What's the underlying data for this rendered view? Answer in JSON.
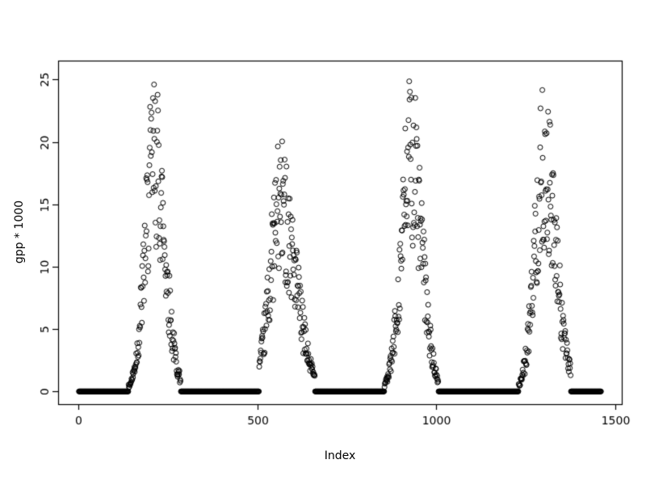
{
  "figure": {
    "background": "#ffffff",
    "foreground": "#000000"
  },
  "chart_data": {
    "type": "scatter",
    "title": "",
    "xlabel": "Index",
    "ylabel": "gpp * 1000",
    "xlim": [
      -57,
      1518
    ],
    "ylim": [
      -1.02,
      26.52
    ],
    "xticks": [
      0,
      500,
      1000,
      1500
    ],
    "yticks": [
      0,
      5,
      10,
      15,
      20,
      25
    ],
    "grid": false,
    "legend": false,
    "marker": "open-circle",
    "point_color": "#000000",
    "n_points": 1460,
    "baseline": {
      "value": 0,
      "outside_peak_windows": true
    },
    "seed": 42,
    "noise": {
      "min_factor": 0.45,
      "max_factor": 1.0
    },
    "peaks": [
      {
        "window": [
          140,
          285
        ],
        "center": 212,
        "amplitude": 25.5,
        "sigma_left": 26,
        "sigma_right": 30
      },
      {
        "window": [
          505,
          660
        ],
        "center": 565,
        "amplitude": 20.4,
        "sigma_left": 30,
        "sigma_right": 42
      },
      {
        "window": [
          855,
          1005
        ],
        "center": 930,
        "amplitude": 25.6,
        "sigma_left": 28,
        "sigma_right": 30
      },
      {
        "window": [
          1230,
          1375
        ],
        "center": 1300,
        "amplitude": 24.6,
        "sigma_left": 26,
        "sigma_right": 34
      }
    ]
  }
}
